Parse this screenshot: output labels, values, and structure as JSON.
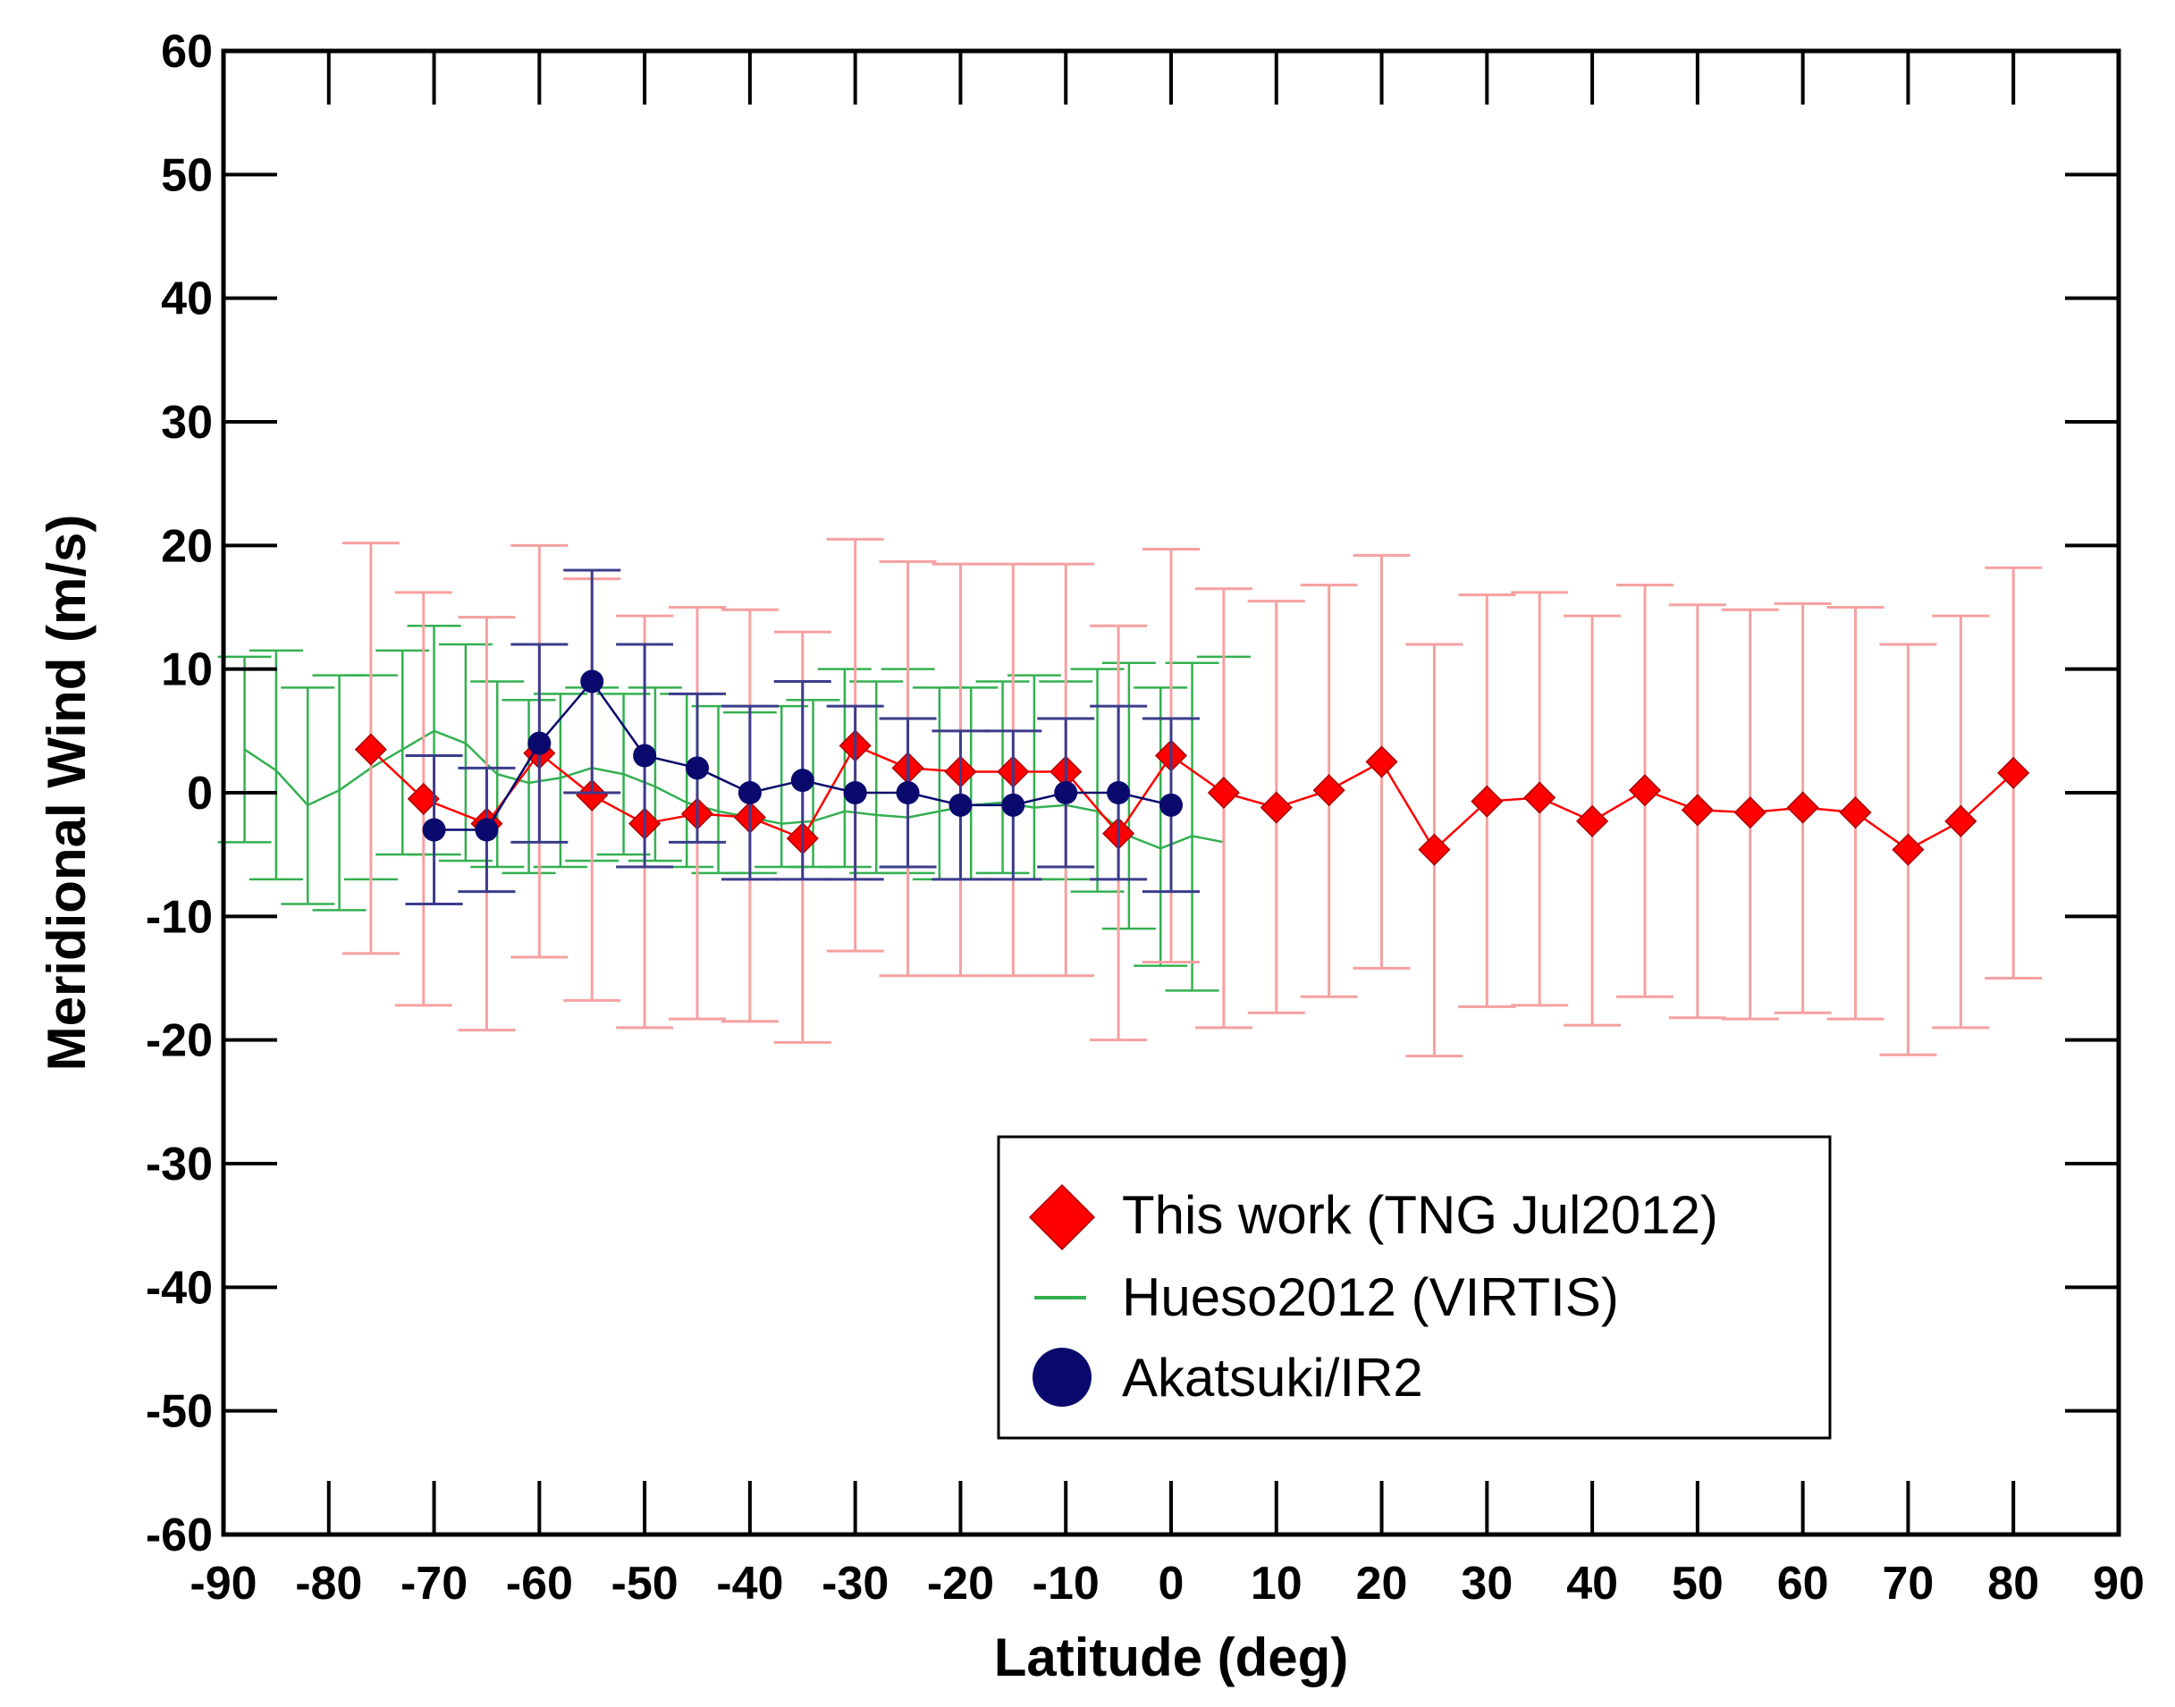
{
  "chart_data": {
    "type": "scatter",
    "title": "",
    "xlabel": "Latitude (deg)",
    "ylabel": "Meridional Wind (m/s)",
    "xlim": [
      -90,
      90
    ],
    "ylim": [
      -60,
      60
    ],
    "xticks": [
      -90,
      -80,
      -70,
      -60,
      -50,
      -40,
      -30,
      -20,
      -10,
      0,
      10,
      20,
      30,
      40,
      50,
      60,
      70,
      80,
      90
    ],
    "yticks": [
      60,
      50,
      40,
      30,
      20,
      10,
      0,
      -10,
      -20,
      -30,
      -40,
      -50,
      -60
    ],
    "grid": false,
    "legend_position": "bottom-right",
    "series": [
      {
        "name": "This work (TNG Jul2012)",
        "marker": "diamond",
        "color": "#ff0000",
        "errorbar_color": "#f5a0a0",
        "x": [
          -76,
          -71,
          -65,
          -60,
          -55,
          -50,
          -45,
          -40,
          -35,
          -30,
          -25,
          -20,
          -15,
          -10,
          -5,
          0,
          5,
          10,
          15,
          20,
          25,
          30,
          35,
          40,
          45,
          50,
          55,
          60,
          65,
          70,
          75,
          80
        ],
        "y": [
          3.5,
          -0.5,
          -2.5,
          3.2,
          -0.2,
          -2.5,
          -1.7,
          -2.0,
          -3.7,
          3.8,
          2.0,
          1.7,
          1.7,
          1.7,
          -3.3,
          3.0,
          0.0,
          -1.2,
          0.2,
          2.5,
          -4.6,
          -0.7,
          -0.4,
          -2.3,
          0.2,
          -1.4,
          -1.6,
          -1.2,
          -1.6,
          -4.6,
          -2.3,
          1.6
        ],
        "yerr_low": [
          -13.0,
          -17.2,
          -19.2,
          -13.3,
          -16.8,
          -19.0,
          -18.3,
          -18.5,
          -20.2,
          -12.8,
          -14.8,
          -14.8,
          -14.8,
          -14.8,
          -20.0,
          -13.7,
          -19.0,
          -17.8,
          -16.5,
          -14.2,
          -21.3,
          -17.3,
          -17.2,
          -18.8,
          -16.5,
          -18.2,
          -18.3,
          -17.8,
          -18.3,
          -21.2,
          -19.0,
          -15.0
        ],
        "yerr_high": [
          20.2,
          16.2,
          14.2,
          20.0,
          17.3,
          14.3,
          15.0,
          14.8,
          13.0,
          20.5,
          18.7,
          18.5,
          18.5,
          18.5,
          13.5,
          19.7,
          16.5,
          15.5,
          16.8,
          19.2,
          12.0,
          16.0,
          16.2,
          14.3,
          16.8,
          15.2,
          14.8,
          15.3,
          15.0,
          12.0,
          14.3,
          18.2
        ]
      },
      {
        "name": "Hueso2012 (VIRTIS)",
        "marker": "line",
        "color": "#33b050",
        "x": [
          -88,
          -85,
          -82,
          -79,
          -76,
          -73,
          -70,
          -67,
          -64,
          -61,
          -58,
          -55,
          -52,
          -49,
          -46,
          -43,
          -40,
          -37,
          -34,
          -31,
          -28,
          -25,
          -22,
          -19,
          -16,
          -13,
          -10,
          -7,
          -4,
          -1,
          2,
          5
        ],
        "y": [
          3.5,
          1.8,
          -1.0,
          0.2,
          2.0,
          3.5,
          5.0,
          4.0,
          1.5,
          0.8,
          1.2,
          2.0,
          1.5,
          0.5,
          -0.8,
          -1.5,
          -2.0,
          -2.5,
          -2.3,
          -1.5,
          -1.8,
          -2.0,
          -1.5,
          -1.0,
          -0.8,
          -1.2,
          -1.0,
          -1.5,
          -3.5,
          -4.5,
          -3.5,
          -4.0
        ],
        "yerr_low": [
          -4.0,
          -7.0,
          -9.0,
          -9.5,
          -7.0,
          -5.0,
          -5.0,
          -5.5,
          -6.0,
          -6.5,
          -6.0,
          -5.5,
          -5.0,
          -5.5,
          -6.0,
          -6.5,
          -6.5,
          -6.0,
          -6.0,
          -6.0,
          -6.5,
          -6.5,
          -7.0,
          -7.0,
          -6.5,
          -7.0,
          -7.0,
          -8.0,
          -11.0,
          -14.0,
          -16.0,
          -19.0
        ],
        "yerr_high": [
          11.0,
          11.5,
          8.5,
          9.5,
          9.5,
          11.5,
          13.5,
          12.0,
          9.0,
          7.5,
          8.0,
          8.5,
          8.0,
          8.5,
          8.0,
          7.0,
          6.5,
          7.0,
          7.5,
          10.0,
          9.0,
          10.0,
          8.5,
          8.5,
          9.0,
          9.5,
          9.0,
          10.0,
          10.5,
          8.5,
          10.5,
          11.0
        ]
      },
      {
        "name": "Akatsuki/IR2",
        "marker": "circle",
        "color": "#0a0a6e",
        "x": [
          -70,
          -65,
          -60,
          -55,
          -50,
          -45,
          -40,
          -35,
          -30,
          -25,
          -20,
          -15,
          -10,
          -5,
          0
        ],
        "y": [
          -3.0,
          -3.0,
          4.0,
          9.0,
          3.0,
          2.0,
          0.0,
          1.0,
          0.0,
          0.0,
          -1.0,
          -1.0,
          0.0,
          0.0,
          -1.0
        ],
        "yerr_low": [
          -9.0,
          -8.0,
          -4.0,
          0.0,
          -6.0,
          -4.0,
          -7.0,
          -7.0,
          -7.0,
          -6.0,
          -7.0,
          -7.0,
          -6.0,
          -7.0,
          -8.0
        ],
        "yerr_high": [
          3.0,
          2.0,
          12.0,
          18.0,
          12.0,
          8.0,
          7.0,
          9.0,
          7.0,
          6.0,
          5.0,
          5.0,
          6.0,
          7.0,
          6.0
        ]
      }
    ]
  }
}
